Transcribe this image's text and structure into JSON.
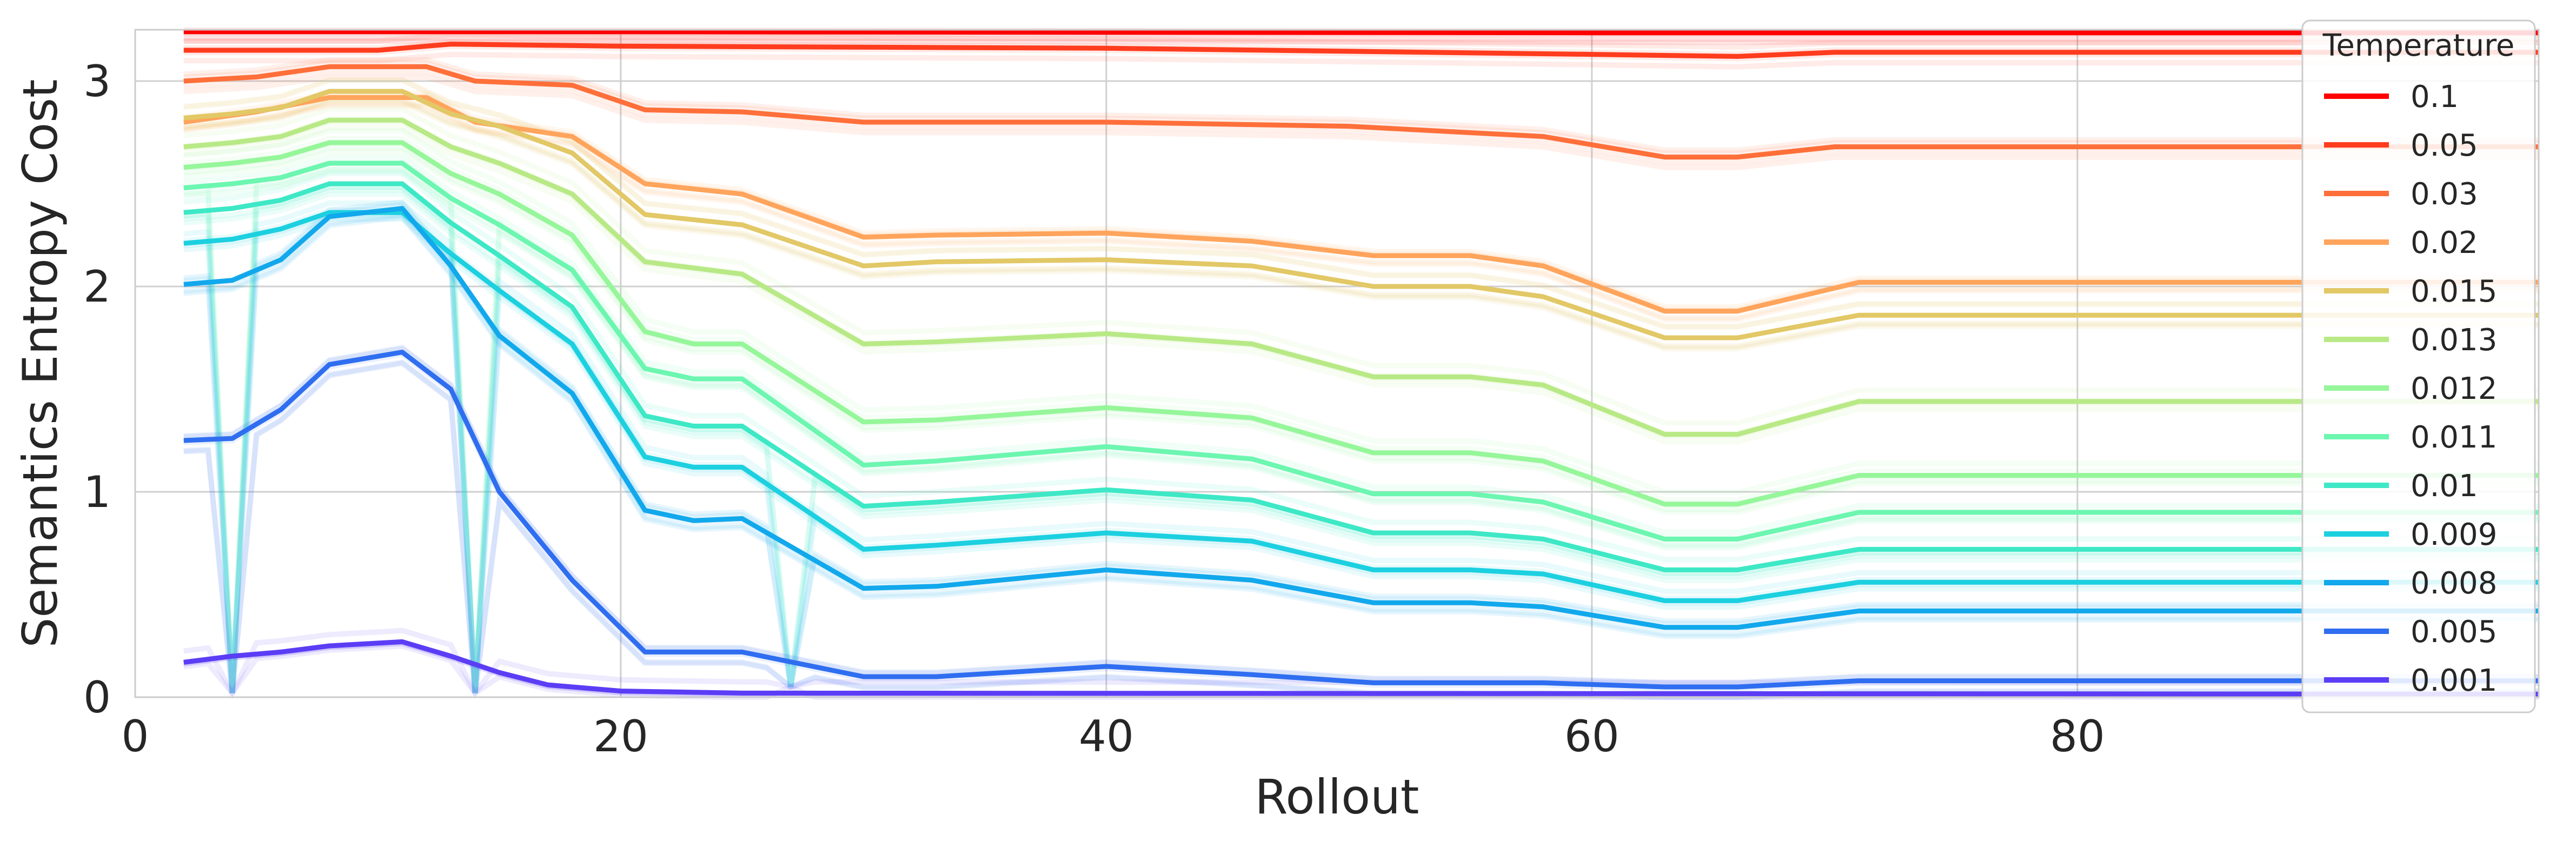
{
  "chart_data": {
    "type": "line",
    "title": "",
    "xlabel": "Rollout",
    "ylabel": "Semantics Entropy Cost",
    "xlim": [
      0,
      99
    ],
    "ylim": [
      0,
      3.25
    ],
    "x_ticks": [
      0,
      20,
      40,
      60,
      80
    ],
    "y_ticks": [
      0,
      1,
      2,
      3
    ],
    "grid": true,
    "legend": {
      "title": "Temperature",
      "placement": "top-right"
    },
    "series": [
      {
        "name": "0.1",
        "color": "#ff0000",
        "points": [
          [
            2,
            3.24
          ],
          [
            20,
            3.24
          ],
          [
            60,
            3.235
          ],
          [
            99,
            3.235
          ]
        ]
      },
      {
        "name": "0.05",
        "color": "#ff3c1e",
        "points": [
          [
            2,
            3.15
          ],
          [
            10,
            3.15
          ],
          [
            13,
            3.18
          ],
          [
            20,
            3.17
          ],
          [
            40,
            3.16
          ],
          [
            60,
            3.13
          ],
          [
            66,
            3.12
          ],
          [
            70,
            3.14
          ],
          [
            99,
            3.14
          ]
        ]
      },
      {
        "name": "0.03",
        "color": "#ff6f3a",
        "points": [
          [
            2,
            3.0
          ],
          [
            5,
            3.02
          ],
          [
            8,
            3.07
          ],
          [
            12,
            3.07
          ],
          [
            14,
            3.0
          ],
          [
            18,
            2.98
          ],
          [
            21,
            2.86
          ],
          [
            25,
            2.85
          ],
          [
            30,
            2.8
          ],
          [
            40,
            2.8
          ],
          [
            50,
            2.78
          ],
          [
            58,
            2.73
          ],
          [
            63,
            2.63
          ],
          [
            66,
            2.63
          ],
          [
            70,
            2.68
          ],
          [
            99,
            2.68
          ]
        ]
      },
      {
        "name": "0.02",
        "color": "#ffa45c",
        "points": [
          [
            2,
            2.8
          ],
          [
            5,
            2.85
          ],
          [
            8,
            2.92
          ],
          [
            12,
            2.92
          ],
          [
            14,
            2.8
          ],
          [
            18,
            2.73
          ],
          [
            21,
            2.5
          ],
          [
            25,
            2.45
          ],
          [
            30,
            2.24
          ],
          [
            33,
            2.25
          ],
          [
            40,
            2.26
          ],
          [
            46,
            2.22
          ],
          [
            51,
            2.15
          ],
          [
            55,
            2.15
          ],
          [
            58,
            2.1
          ],
          [
            63,
            1.88
          ],
          [
            66,
            1.88
          ],
          [
            71,
            2.02
          ],
          [
            99,
            2.02
          ]
        ]
      },
      {
        "name": "0.015",
        "color": "#e2c866",
        "points": [
          [
            2,
            2.82
          ],
          [
            4,
            2.84
          ],
          [
            6,
            2.87
          ],
          [
            8,
            2.95
          ],
          [
            11,
            2.95
          ],
          [
            13,
            2.84
          ],
          [
            15,
            2.78
          ],
          [
            18,
            2.65
          ],
          [
            21,
            2.35
          ],
          [
            25,
            2.3
          ],
          [
            30,
            2.1
          ],
          [
            33,
            2.12
          ],
          [
            40,
            2.13
          ],
          [
            46,
            2.1
          ],
          [
            51,
            2.0
          ],
          [
            55,
            2.0
          ],
          [
            58,
            1.95
          ],
          [
            63,
            1.75
          ],
          [
            66,
            1.75
          ],
          [
            71,
            1.86
          ],
          [
            99,
            1.86
          ]
        ]
      },
      {
        "name": "0.013",
        "color": "#b8e986",
        "points": [
          [
            2,
            2.68
          ],
          [
            4,
            2.7
          ],
          [
            6,
            2.73
          ],
          [
            8,
            2.81
          ],
          [
            11,
            2.81
          ],
          [
            13,
            2.68
          ],
          [
            15,
            2.6
          ],
          [
            18,
            2.45
          ],
          [
            21,
            2.12
          ],
          [
            25,
            2.06
          ],
          [
            30,
            1.72
          ],
          [
            33,
            1.73
          ],
          [
            40,
            1.77
          ],
          [
            46,
            1.72
          ],
          [
            51,
            1.56
          ],
          [
            55,
            1.56
          ],
          [
            58,
            1.52
          ],
          [
            63,
            1.28
          ],
          [
            66,
            1.28
          ],
          [
            71,
            1.44
          ],
          [
            99,
            1.44
          ]
        ]
      },
      {
        "name": "0.012",
        "color": "#96f69a",
        "points": [
          [
            2,
            2.58
          ],
          [
            4,
            2.6
          ],
          [
            6,
            2.63
          ],
          [
            8,
            2.7
          ],
          [
            11,
            2.7
          ],
          [
            13,
            2.55
          ],
          [
            15,
            2.45
          ],
          [
            18,
            2.25
          ],
          [
            21,
            1.78
          ],
          [
            23,
            1.72
          ],
          [
            25,
            1.72
          ],
          [
            30,
            1.34
          ],
          [
            33,
            1.35
          ],
          [
            40,
            1.41
          ],
          [
            46,
            1.36
          ],
          [
            51,
            1.19
          ],
          [
            55,
            1.19
          ],
          [
            58,
            1.15
          ],
          [
            63,
            0.94
          ],
          [
            66,
            0.94
          ],
          [
            71,
            1.08
          ],
          [
            99,
            1.08
          ]
        ]
      },
      {
        "name": "0.011",
        "color": "#6cf6b0",
        "points": [
          [
            2,
            2.48
          ],
          [
            4,
            2.5
          ],
          [
            6,
            2.53
          ],
          [
            8,
            2.6
          ],
          [
            11,
            2.6
          ],
          [
            13,
            2.43
          ],
          [
            15,
            2.3
          ],
          [
            18,
            2.08
          ],
          [
            21,
            1.6
          ],
          [
            23,
            1.55
          ],
          [
            25,
            1.55
          ],
          [
            30,
            1.13
          ],
          [
            33,
            1.15
          ],
          [
            40,
            1.22
          ],
          [
            46,
            1.16
          ],
          [
            51,
            0.99
          ],
          [
            55,
            0.99
          ],
          [
            58,
            0.95
          ],
          [
            63,
            0.77
          ],
          [
            66,
            0.77
          ],
          [
            71,
            0.9
          ],
          [
            99,
            0.9
          ]
        ]
      },
      {
        "name": "0.01",
        "color": "#3ee8c6",
        "points": [
          [
            2,
            2.36
          ],
          [
            4,
            2.38
          ],
          [
            6,
            2.42
          ],
          [
            8,
            2.5
          ],
          [
            11,
            2.5
          ],
          [
            13,
            2.31
          ],
          [
            15,
            2.15
          ],
          [
            18,
            1.9
          ],
          [
            21,
            1.37
          ],
          [
            23,
            1.32
          ],
          [
            25,
            1.32
          ],
          [
            30,
            0.93
          ],
          [
            33,
            0.95
          ],
          [
            40,
            1.01
          ],
          [
            46,
            0.96
          ],
          [
            51,
            0.8
          ],
          [
            55,
            0.8
          ],
          [
            58,
            0.77
          ],
          [
            63,
            0.62
          ],
          [
            66,
            0.62
          ],
          [
            71,
            0.72
          ],
          [
            99,
            0.72
          ]
        ]
      },
      {
        "name": "0.009",
        "color": "#1cd0e0",
        "points": [
          [
            2,
            2.21
          ],
          [
            4,
            2.23
          ],
          [
            6,
            2.28
          ],
          [
            8,
            2.36
          ],
          [
            11,
            2.36
          ],
          [
            13,
            2.16
          ],
          [
            15,
            1.98
          ],
          [
            18,
            1.72
          ],
          [
            21,
            1.17
          ],
          [
            23,
            1.12
          ],
          [
            25,
            1.12
          ],
          [
            30,
            0.72
          ],
          [
            33,
            0.74
          ],
          [
            40,
            0.8
          ],
          [
            46,
            0.76
          ],
          [
            51,
            0.62
          ],
          [
            55,
            0.62
          ],
          [
            58,
            0.6
          ],
          [
            63,
            0.47
          ],
          [
            66,
            0.47
          ],
          [
            71,
            0.56
          ],
          [
            99,
            0.56
          ]
        ]
      },
      {
        "name": "0.008",
        "color": "#12a8ec",
        "points": [
          [
            2,
            2.01
          ],
          [
            4,
            2.03
          ],
          [
            6,
            2.13
          ],
          [
            8,
            2.34
          ],
          [
            11,
            2.38
          ],
          [
            13,
            2.1
          ],
          [
            15,
            1.76
          ],
          [
            18,
            1.48
          ],
          [
            21,
            0.91
          ],
          [
            23,
            0.86
          ],
          [
            25,
            0.87
          ],
          [
            30,
            0.53
          ],
          [
            33,
            0.54
          ],
          [
            40,
            0.62
          ],
          [
            46,
            0.57
          ],
          [
            51,
            0.46
          ],
          [
            55,
            0.46
          ],
          [
            58,
            0.44
          ],
          [
            63,
            0.34
          ],
          [
            66,
            0.34
          ],
          [
            71,
            0.42
          ],
          [
            99,
            0.42
          ]
        ]
      },
      {
        "name": "0.005",
        "color": "#2f6ef0",
        "points": [
          [
            2,
            1.25
          ],
          [
            4,
            1.26
          ],
          [
            6,
            1.4
          ],
          [
            8,
            1.62
          ],
          [
            11,
            1.68
          ],
          [
            13,
            1.5
          ],
          [
            15,
            1.0
          ],
          [
            18,
            0.57
          ],
          [
            21,
            0.22
          ],
          [
            23,
            0.22
          ],
          [
            25,
            0.22
          ],
          [
            30,
            0.1
          ],
          [
            33,
            0.1
          ],
          [
            40,
            0.15
          ],
          [
            46,
            0.11
          ],
          [
            51,
            0.07
          ],
          [
            55,
            0.07
          ],
          [
            58,
            0.07
          ],
          [
            63,
            0.05
          ],
          [
            66,
            0.05
          ],
          [
            71,
            0.08
          ],
          [
            99,
            0.08
          ]
        ]
      },
      {
        "name": "0.001",
        "color": "#5b3df5",
        "points": [
          [
            2,
            0.17
          ],
          [
            4,
            0.2
          ],
          [
            6,
            0.22
          ],
          [
            8,
            0.25
          ],
          [
            11,
            0.27
          ],
          [
            13,
            0.2
          ],
          [
            15,
            0.12
          ],
          [
            17,
            0.06
          ],
          [
            20,
            0.03
          ],
          [
            25,
            0.02
          ],
          [
            99,
            0.015
          ]
        ]
      }
    ]
  }
}
